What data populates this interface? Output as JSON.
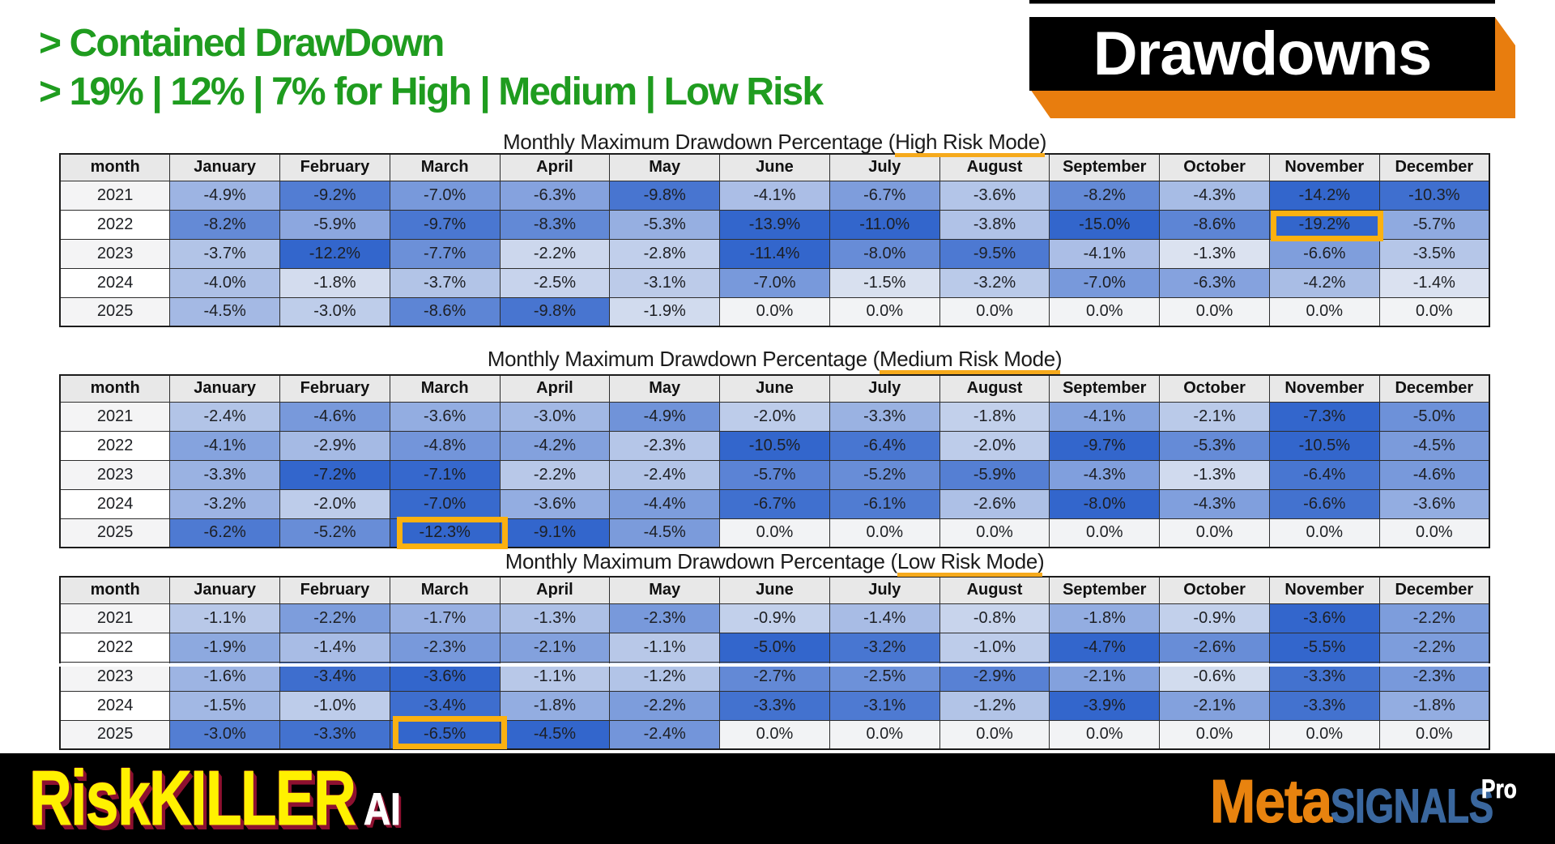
{
  "header": {
    "line1": "> Contained DrawDown",
    "line2": "> 19% | 12% | 7% for High | Medium | Low Risk",
    "color": "#1f9c1f"
  },
  "badge": {
    "label": "Drawdowns",
    "bg_color": "#000000",
    "text_color": "#ffffff",
    "shadow_color": "#e87d0e"
  },
  "accent": {
    "title_underline_color": "#f6aa1c",
    "cell_highlight_color": "#fbb110"
  },
  "heatmap": {
    "zero_color": "#f2f3f5",
    "max_color": "#3366cc",
    "year_column_odd_row_color": "#f4f4f5",
    "year_column_even_row_color": "#ffffff",
    "header_color": "#e8e8e8"
  },
  "chart_data": [
    {
      "type": "heatmap",
      "title_prefix": "Monthly Maximum Drawdown Percentage (",
      "title_highlight": "High Risk Mode",
      "title_suffix": ")",
      "unit": "%",
      "columns": [
        "month",
        "January",
        "February",
        "March",
        "April",
        "May",
        "June",
        "July",
        "August",
        "September",
        "October",
        "November",
        "December"
      ],
      "color_scale_saturation_abs": 11,
      "highlight_cell": {
        "row": "2022",
        "column": "November",
        "value": "-19.2%"
      },
      "rows": [
        {
          "year": "2021",
          "values": [
            -4.9,
            -9.2,
            -7.0,
            -6.3,
            -9.8,
            -4.1,
            -6.7,
            -3.6,
            -8.2,
            -4.3,
            -14.2,
            -10.3
          ]
        },
        {
          "year": "2022",
          "values": [
            -8.2,
            -5.9,
            -9.7,
            -8.3,
            -5.3,
            -13.9,
            -11.0,
            -3.8,
            -15.0,
            -8.6,
            -19.2,
            -5.7
          ]
        },
        {
          "year": "2023",
          "values": [
            -3.7,
            -12.2,
            -7.7,
            -2.2,
            -2.8,
            -11.4,
            -8.0,
            -9.5,
            -4.1,
            -1.3,
            -6.6,
            -3.5
          ]
        },
        {
          "year": "2024",
          "values": [
            -4.0,
            -1.8,
            -3.7,
            -2.5,
            -3.1,
            -7.0,
            -1.5,
            -3.2,
            -7.0,
            -6.3,
            -4.2,
            -1.4
          ]
        },
        {
          "year": "2025",
          "values": [
            -4.5,
            -3.0,
            -8.6,
            -9.8,
            -1.9,
            0.0,
            0.0,
            0.0,
            0.0,
            0.0,
            0.0,
            0.0
          ]
        }
      ]
    },
    {
      "type": "heatmap",
      "title_prefix": "Monthly Maximum Drawdown Percentage (",
      "title_highlight": "Medium Risk Mode",
      "title_suffix": ")",
      "unit": "%",
      "columns": [
        "month",
        "January",
        "February",
        "March",
        "April",
        "May",
        "June",
        "July",
        "August",
        "September",
        "October",
        "November",
        "December"
      ],
      "color_scale_saturation_abs": 7.2,
      "highlight_cell": {
        "row": "2025",
        "column": "March",
        "value": "-12.3%"
      },
      "rows": [
        {
          "year": "2021",
          "values": [
            -2.4,
            -4.6,
            -3.6,
            -3.0,
            -4.9,
            -2.0,
            -3.3,
            -1.8,
            -4.1,
            -2.1,
            -7.3,
            -5.0
          ]
        },
        {
          "year": "2022",
          "values": [
            -4.1,
            -2.9,
            -4.8,
            -4.2,
            -2.3,
            -10.5,
            -6.4,
            -2.0,
            -9.7,
            -5.3,
            -10.5,
            -4.5
          ]
        },
        {
          "year": "2023",
          "values": [
            -3.3,
            -7.2,
            -7.1,
            -2.2,
            -2.4,
            -5.7,
            -5.2,
            -5.9,
            -4.3,
            -1.3,
            -6.4,
            -4.6
          ]
        },
        {
          "year": "2024",
          "values": [
            -3.2,
            -2.0,
            -7.0,
            -3.6,
            -4.4,
            -6.7,
            -6.1,
            -2.6,
            -8.0,
            -4.3,
            -6.6,
            -3.6
          ]
        },
        {
          "year": "2025",
          "values": [
            -6.2,
            -5.2,
            -12.3,
            -9.1,
            -4.5,
            0.0,
            0.0,
            0.0,
            0.0,
            0.0,
            0.0,
            0.0
          ]
        }
      ]
    },
    {
      "type": "heatmap",
      "title_prefix": "Monthly Maximum Drawdown Percentage (",
      "title_highlight": "Low Risk Mode",
      "title_suffix": ")",
      "unit": "%",
      "columns": [
        "month",
        "January",
        "February",
        "March",
        "April",
        "May",
        "June",
        "July",
        "August",
        "September",
        "October",
        "November",
        "December"
      ],
      "color_scale_saturation_abs": 3.6,
      "highlight_cell": {
        "row": "2025",
        "column": "March",
        "value": "-6.5%"
      },
      "rows": [
        {
          "year": "2021",
          "values": [
            -1.1,
            -2.2,
            -1.7,
            -1.3,
            -2.3,
            -0.9,
            -1.4,
            -0.8,
            -1.8,
            -0.9,
            -3.6,
            -2.2
          ]
        },
        {
          "year": "2022",
          "values": [
            -1.9,
            -1.4,
            -2.3,
            -2.1,
            -1.1,
            -5.0,
            -3.2,
            -1.0,
            -4.7,
            -2.6,
            -5.5,
            -2.2
          ]
        },
        {
          "year": "2023",
          "values": [
            -1.6,
            -3.4,
            -3.6,
            -1.1,
            -1.2,
            -2.7,
            -2.5,
            -2.9,
            -2.1,
            -0.6,
            -3.3,
            -2.3
          ]
        },
        {
          "year": "2024",
          "values": [
            -1.5,
            -1.0,
            -3.4,
            -1.8,
            -2.2,
            -3.3,
            -3.1,
            -1.2,
            -3.9,
            -2.1,
            -3.3,
            -1.8
          ]
        },
        {
          "year": "2025",
          "values": [
            -3.0,
            -3.3,
            -6.5,
            -4.5,
            -2.4,
            0.0,
            0.0,
            0.0,
            0.0,
            0.0,
            0.0,
            0.0
          ]
        }
      ]
    }
  ],
  "footer": {
    "bg_color": "#000000",
    "brand_left": {
      "main": "RiskKILLER",
      "suffix": "AI",
      "main_color": "#fff100",
      "suffix_color": "#ffffff",
      "shadow_color": "#8e1130"
    },
    "brand_right": {
      "part1": "Meta",
      "part2": "SIGNALS",
      "sup": "Pro",
      "part1_color": "#e8830f",
      "part2_color": "#3a679e",
      "sup_color": "#ffffff"
    }
  }
}
